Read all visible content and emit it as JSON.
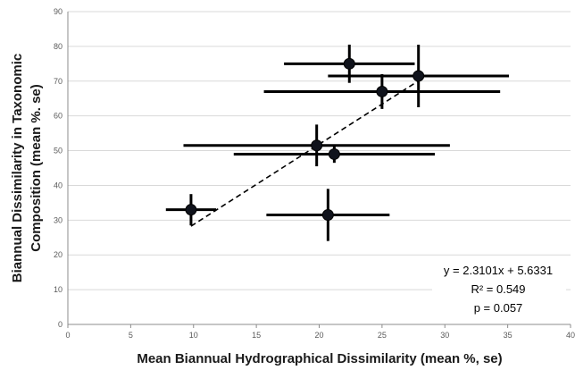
{
  "chart_data": {
    "type": "scatter",
    "title": "",
    "xlabel": "Mean Biannual Hydrographical Dissimilarity (mean %, se)",
    "ylabel_lines": [
      "Biannual Dissimilarity in Taxonomic",
      "Composition (mean %. se)"
    ],
    "xlim": [
      0,
      40
    ],
    "ylim": [
      0,
      90
    ],
    "x_ticks": [
      "0",
      "5",
      "10",
      "15",
      "20",
      "25",
      "30",
      "35",
      "40"
    ],
    "y_ticks": [
      "0",
      "10",
      "20",
      "30",
      "40",
      "50",
      "60",
      "70",
      "80",
      "90"
    ],
    "grid": "horizontal",
    "points": [
      {
        "x": 9.8,
        "y": 33.0,
        "xerr": 2.0,
        "yerr": 4.5
      },
      {
        "x": 20.7,
        "y": 31.5,
        "xerr": 4.9,
        "yerr": 7.5
      },
      {
        "x": 19.8,
        "y": 51.5,
        "xerr": 10.6,
        "yerr": 6.0
      },
      {
        "x": 21.2,
        "y": 49.0,
        "xerr": 8.0,
        "yerr": 2.5
      },
      {
        "x": 25.0,
        "y": 67.0,
        "xerr": 9.4,
        "yerr": 5.0
      },
      {
        "x": 22.4,
        "y": 75.0,
        "xerr": 5.2,
        "yerr": 5.5
      },
      {
        "x": 27.9,
        "y": 71.5,
        "xerr": 7.2,
        "yerr": 9.0
      }
    ],
    "trendline": {
      "x_start": 9.8,
      "x_end": 28.0,
      "slope": 2.3101,
      "intercept": 5.6331
    },
    "annotations": {
      "equation": "y = 2.3101x + 5.6331",
      "r_squared": "R² = 0.549",
      "p_value": "p = 0.057"
    }
  }
}
